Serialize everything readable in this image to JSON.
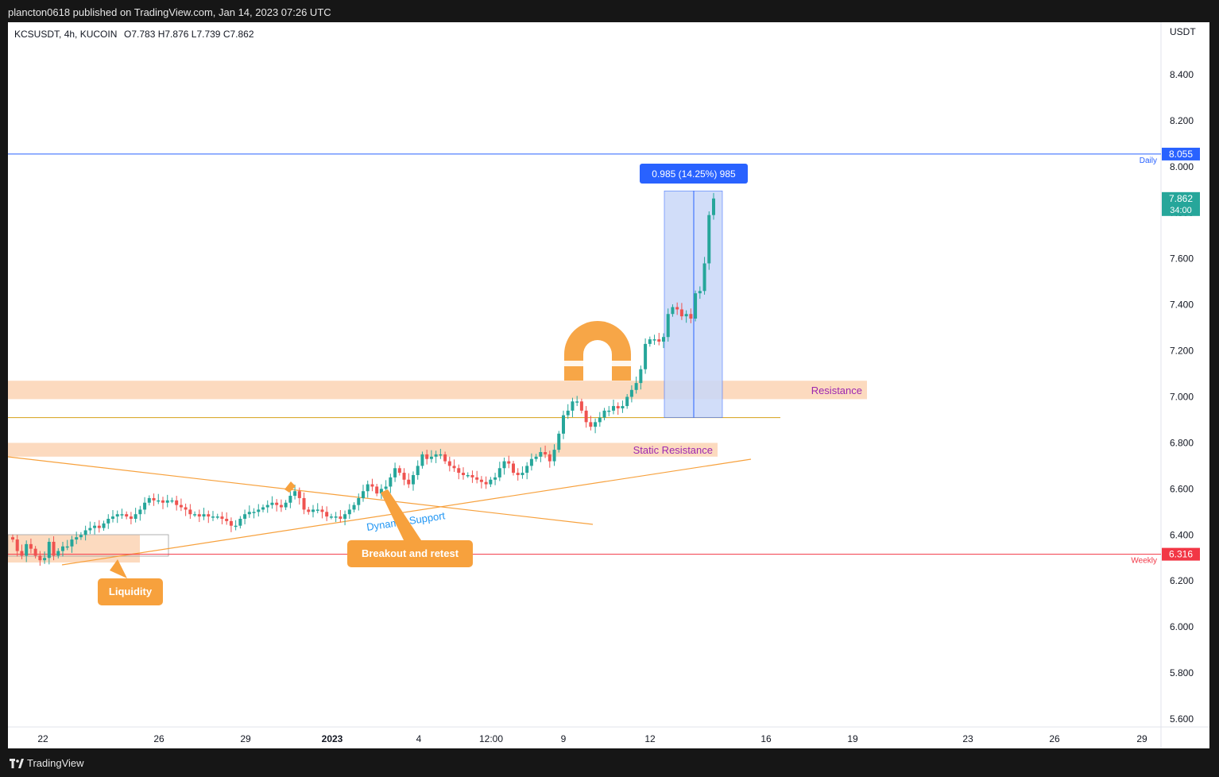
{
  "publish_line": "plancton0618 published on TradingView.com, Jan 14, 2023 07:26 UTC",
  "brand": "TradingView",
  "colors": {
    "up": "#26a69a",
    "down": "#ef5350",
    "resistance_zone": "#fbd4b4",
    "label_orange": "#f7a13d",
    "daily_line": "#2962ff",
    "weekly_line": "#f23645",
    "measure_fill": "#c9d8f9",
    "price_tag": "#26a69a"
  },
  "chart_data": {
    "type": "candlestick",
    "symbol": "KCSUSDT",
    "interval": "4h",
    "exchange": "KUCOIN",
    "ohlc_legend": {
      "o": "O7.783",
      "h": "H7.876",
      "l": "L7.739",
      "c": "C7.862"
    },
    "y_axis": {
      "unit": "USDT",
      "ticks": [
        "8.400",
        "8.200",
        "8.000",
        "7.800",
        "7.600",
        "7.400",
        "7.200",
        "7.000",
        "6.800",
        "6.600",
        "6.400",
        "6.200",
        "6.000",
        "5.800",
        "5.600"
      ],
      "range": [
        5.56,
        8.62
      ]
    },
    "x_axis": {
      "ticks": [
        "22",
        "26",
        "29",
        "2023",
        "4",
        "12:00",
        "9",
        "12",
        "16",
        "19",
        "23",
        "26",
        "29"
      ]
    },
    "price_levels": [
      {
        "label": "Daily",
        "value": "8.055"
      },
      {
        "label": "Weekly",
        "value": "6.316"
      },
      {
        "label": "last",
        "value": "7.862",
        "countdown": "34:00"
      }
    ],
    "zones": [
      {
        "label": "Resistance",
        "low": 6.99,
        "high": 7.07
      },
      {
        "label": "Static Resistance",
        "low": 6.74,
        "high": 6.8
      },
      {
        "label": "",
        "low": 6.28,
        "high": 6.4
      }
    ],
    "annotations": {
      "liquidity": "Liquidity",
      "breakout": "Breakout and retest",
      "dynamic_support": "Dynamic Support",
      "measure": "0.985 (14.25%) 985"
    },
    "closes": [
      6.38,
      6.33,
      6.31,
      6.36,
      6.34,
      6.31,
      6.29,
      6.3,
      6.37,
      6.31,
      6.33,
      6.35,
      6.35,
      6.38,
      6.39,
      6.4,
      6.42,
      6.43,
      6.44,
      6.43,
      6.45,
      6.47,
      6.48,
      6.49,
      6.49,
      6.48,
      6.47,
      6.49,
      6.51,
      6.54,
      6.56,
      6.55,
      6.55,
      6.54,
      6.55,
      6.55,
      6.53,
      6.52,
      6.51,
      6.49,
      6.49,
      6.48,
      6.49,
      6.48,
      6.48,
      6.48,
      6.47,
      6.46,
      6.44,
      6.44,
      6.47,
      6.49,
      6.5,
      6.5,
      6.51,
      6.52,
      6.53,
      6.54,
      6.53,
      6.52,
      6.54,
      6.57,
      6.59,
      6.56,
      6.51,
      6.5,
      6.51,
      6.51,
      6.5,
      6.48,
      6.48,
      6.48,
      6.47,
      6.49,
      6.51,
      6.53,
      6.56,
      6.59,
      6.62,
      6.61,
      6.58,
      6.6,
      6.61,
      6.65,
      6.69,
      6.67,
      6.64,
      6.62,
      6.66,
      6.7,
      6.75,
      6.73,
      6.74,
      6.75,
      6.75,
      6.72,
      6.7,
      6.69,
      6.67,
      6.66,
      6.66,
      6.65,
      6.64,
      6.63,
      6.62,
      6.64,
      6.65,
      6.69,
      6.72,
      6.71,
      6.67,
      6.66,
      6.67,
      6.7,
      6.73,
      6.74,
      6.76,
      6.75,
      6.72,
      6.77,
      6.84,
      6.92,
      6.94,
      6.98,
      6.98,
      6.94,
      6.89,
      6.87,
      6.89,
      6.91,
      6.94,
      6.94,
      6.96,
      6.95,
      6.96,
      7.0,
      7.03,
      7.06,
      7.12,
      7.23,
      7.25,
      7.25,
      7.24,
      7.26,
      7.36,
      7.39,
      7.38,
      7.35,
      7.36,
      7.34,
      7.45,
      7.46,
      7.58,
      7.79,
      7.862
    ],
    "measure": {
      "from": 6.91,
      "to": 7.895
    }
  }
}
